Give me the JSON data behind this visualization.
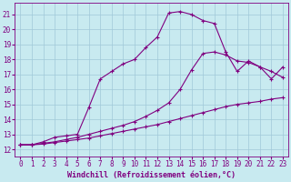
{
  "xlabel": "Windchill (Refroidissement éolien,°C)",
  "ylabel": "",
  "bg_color": "#c8eaf0",
  "line_color": "#800080",
  "grid_color": "#a0c8d8",
  "xlim": [
    -0.5,
    23.5
  ],
  "ylim": [
    11.5,
    21.8
  ],
  "yticks": [
    12,
    13,
    14,
    15,
    16,
    17,
    18,
    19,
    20,
    21
  ],
  "xticks": [
    0,
    1,
    2,
    3,
    4,
    5,
    6,
    7,
    8,
    9,
    10,
    11,
    12,
    13,
    14,
    15,
    16,
    17,
    18,
    19,
    20,
    21,
    22,
    23
  ],
  "line1_x": [
    0,
    1,
    2,
    3,
    4,
    5,
    6,
    7,
    8,
    9,
    10,
    11,
    12,
    13,
    14,
    15,
    16,
    17,
    18,
    19,
    20,
    21,
    22,
    23
  ],
  "line1_y": [
    12.3,
    12.3,
    12.5,
    12.8,
    12.9,
    13.0,
    14.8,
    16.7,
    17.2,
    17.7,
    18.0,
    18.8,
    19.5,
    21.1,
    21.2,
    21.0,
    20.6,
    20.4,
    18.5,
    17.2,
    17.9,
    17.5,
    16.7,
    17.5
  ],
  "line2_x": [
    0,
    1,
    2,
    3,
    4,
    5,
    6,
    7,
    8,
    9,
    10,
    11,
    12,
    13,
    14,
    15,
    16,
    17,
    18,
    19,
    20,
    21,
    22,
    23
  ],
  "line2_y": [
    12.3,
    12.3,
    12.35,
    12.45,
    12.55,
    12.65,
    12.75,
    12.9,
    13.05,
    13.2,
    13.35,
    13.5,
    13.65,
    13.85,
    14.05,
    14.25,
    14.45,
    14.65,
    14.85,
    15.0,
    15.1,
    15.2,
    15.35,
    15.45
  ],
  "line3_x": [
    0,
    1,
    2,
    3,
    4,
    5,
    6,
    7,
    8,
    9,
    10,
    11,
    12,
    13,
    14,
    15,
    16,
    17,
    18,
    19,
    20,
    21,
    22,
    23
  ],
  "line3_y": [
    12.3,
    12.3,
    12.4,
    12.5,
    12.65,
    12.8,
    13.0,
    13.2,
    13.4,
    13.6,
    13.85,
    14.2,
    14.6,
    15.1,
    16.0,
    17.3,
    18.4,
    18.5,
    18.3,
    17.9,
    17.8,
    17.5,
    17.2,
    16.8
  ],
  "marker": "+",
  "marker_size": 3,
  "linewidth": 0.8,
  "xlabel_fontsize": 6,
  "tick_fontsize": 5.5
}
